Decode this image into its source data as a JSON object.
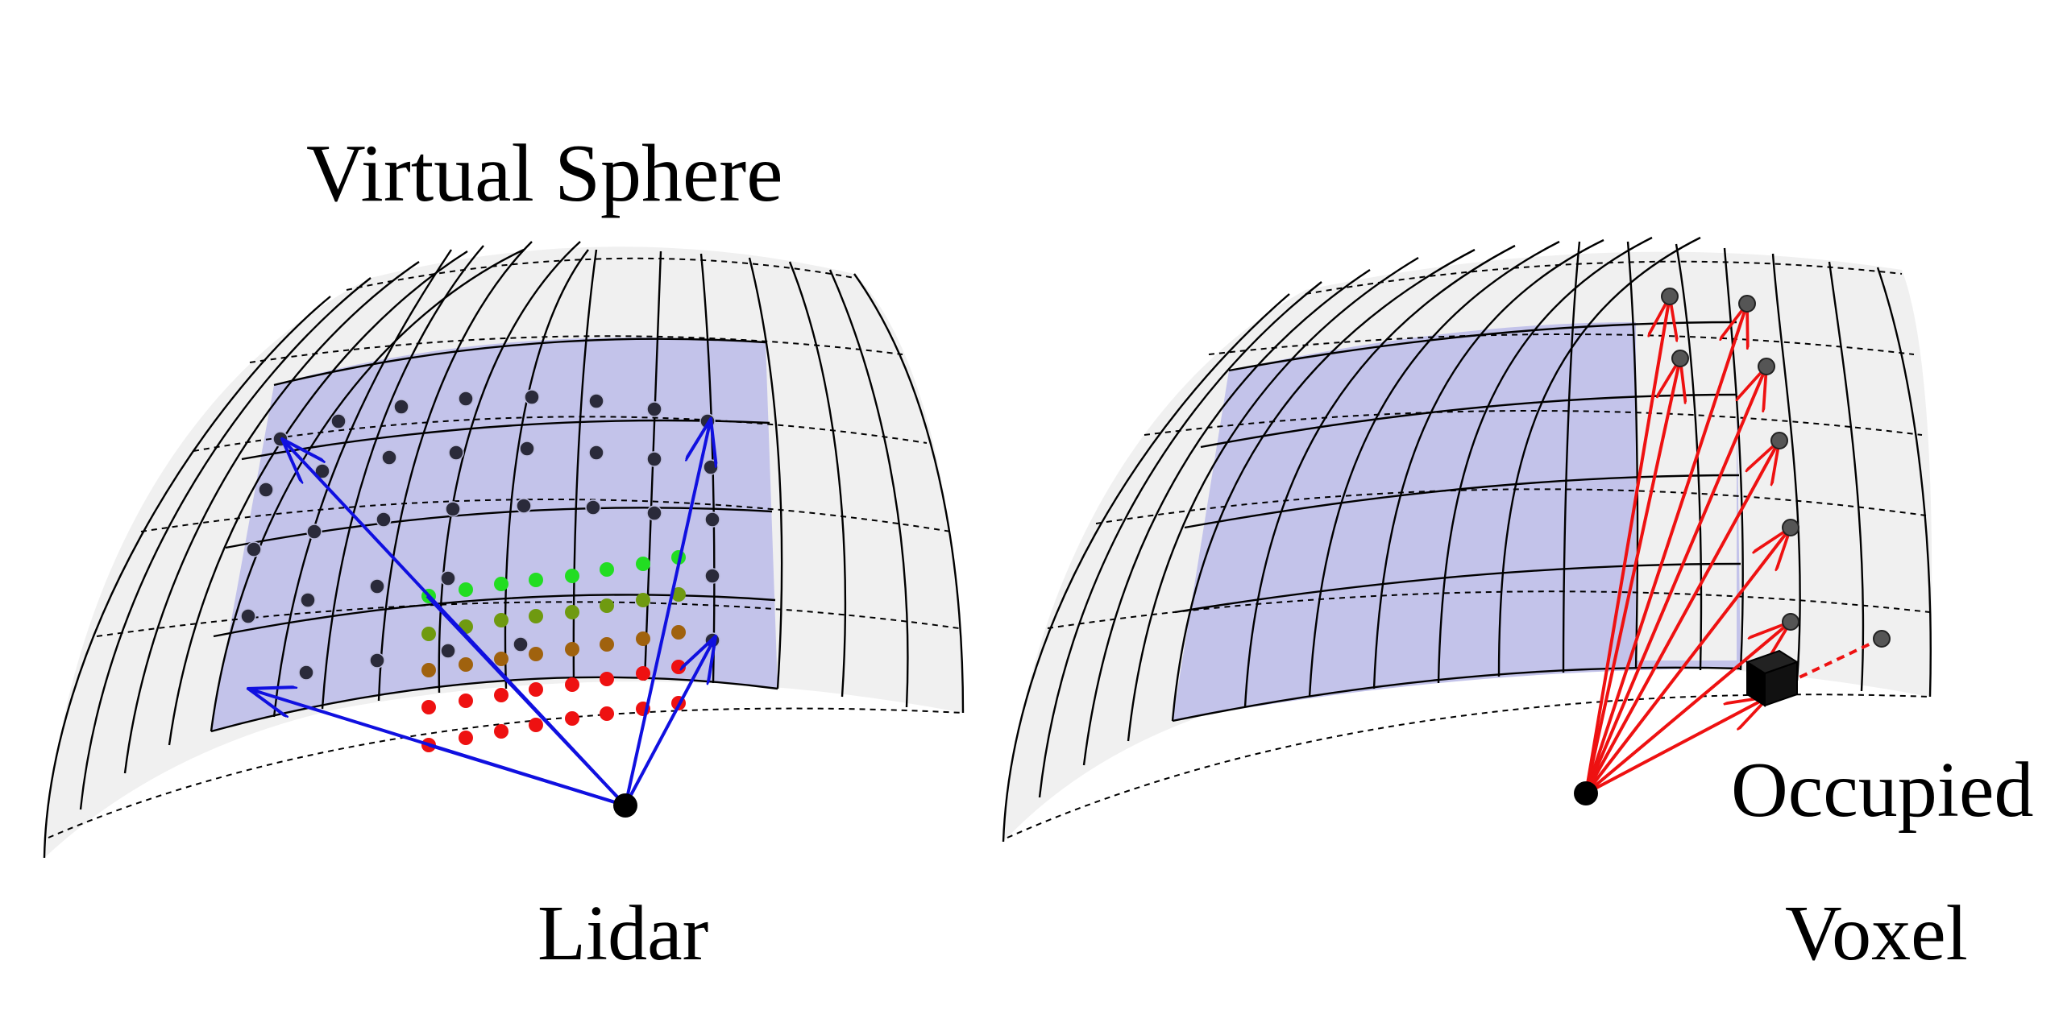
{
  "labels": {
    "title": "Virtual Sphere",
    "left_sensor": "Lidar",
    "right_top": "Occupied",
    "right_bottom": "Voxel"
  },
  "colors": {
    "sphere_fill": "#f0f0f0",
    "highlight_patch": "#c3c3ea",
    "grid_line": "#000000",
    "lidar_ray": "#1010e0",
    "voxel_ray": "#ee1111",
    "ground_points_far": "#22dd22",
    "ground_points_mid": "#6f9a10",
    "ground_points_brown": "#a0620e",
    "ground_points_near": "#ee1111",
    "sphere_point": "#333344",
    "voxel": "#000000"
  },
  "icons": {
    "lidar_sensor": "black-dot-icon",
    "occupied_voxel": "black-cube-icon"
  }
}
